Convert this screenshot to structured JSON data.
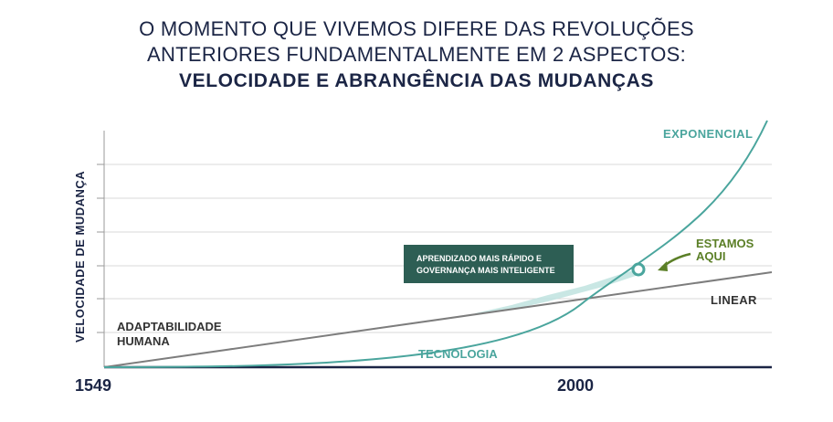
{
  "title": {
    "line1": "O MOMENTO QUE VIVEMOS DIFERE DAS REVOLUÇÕES",
    "line2": "ANTERIORES FUNDAMENTALMENTE EM 2 ASPECTOS:",
    "line3": "VELOCIDADE E ABRANGÊNCIA DAS MUDANÇAS"
  },
  "colors": {
    "navy": "#1b2545",
    "teal": "#4aa59d",
    "gray": "#7d7d7d",
    "green": "#5b7f27",
    "box": "#2d5e54",
    "grid": "#d9d9d9"
  },
  "chart_data": {
    "type": "line",
    "ylabel": "VELOCIDADE DE MUDANÇA",
    "x_start_label": "1549",
    "x_mark_label": "2000",
    "series": [
      {
        "name": "EXPONENCIAL",
        "shape": "exponential"
      },
      {
        "name": "LINEAR",
        "shape": "linear"
      }
    ],
    "annotations": {
      "adaptabilidade_line1": "ADAPTABILIDADE",
      "adaptabilidade_line2": "HUMANA",
      "tecnologia": "TECNOLOGIA",
      "estamos_line1": "ESTAMOS",
      "estamos_line2": "AQUI",
      "box_line1": "APRENDIZADO MAIS RÁPIDO E",
      "box_line2": "GOVERNANÇA MAIS INTELIGENTE"
    },
    "grid": true
  }
}
